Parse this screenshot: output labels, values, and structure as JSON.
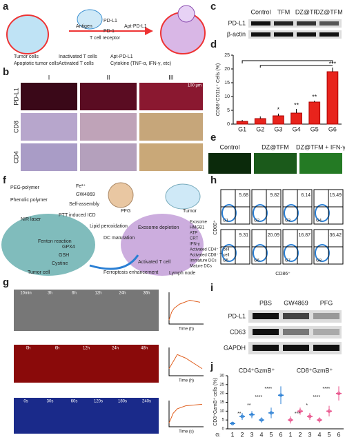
{
  "panels": {
    "a": {
      "letter": "a",
      "labels": [
        "Antigen",
        "PD-L1",
        "PD-1",
        "T cell receptor",
        "Apt-PD-L1"
      ],
      "legend": [
        "Tumor cells",
        "Inactivated T cells",
        "Apt-PD-L1",
        "Apoptotic tumor cells",
        "Activated T cells",
        "Cytokine (TNF-α, IFN-γ, etc)"
      ]
    },
    "b": {
      "letter": "b",
      "columns": [
        "I",
        "II",
        "III"
      ],
      "rows": [
        "PD-L1",
        "CD8",
        "CD4"
      ],
      "scale": "100 μm"
    },
    "c": {
      "letter": "c",
      "columns": [
        "Control",
        "TFM",
        "DZ@TF",
        "DZ@TFM"
      ],
      "rows": [
        "PD-L1",
        "β-actin"
      ]
    },
    "d": {
      "letter": "d",
      "chart": {
        "type": "bar",
        "y_label": "CD86⁺CD11c⁺ Cells (%)",
        "categories": [
          "G1",
          "G2",
          "G3",
          "G4",
          "G5",
          "G6"
        ],
        "values": [
          1,
          2,
          3,
          4,
          8,
          19
        ],
        "errors": [
          0.5,
          0.8,
          0.8,
          1.5,
          0.5,
          1.5
        ],
        "value_labels": [
          null,
          null,
          "*",
          "**",
          "**",
          "***"
        ],
        "color": "#e8231c",
        "ylim": [
          0,
          25
        ],
        "yticks": [
          0,
          5,
          10,
          15,
          20,
          25
        ]
      }
    },
    "e": {
      "letter": "e",
      "columns": [
        "Control",
        "DZ@TFM",
        "DZ@TFM + IFN-γ"
      ]
    },
    "f": {
      "letter": "f",
      "labels": [
        "PEG-polymer",
        "Phenolic polymer",
        "Fe³⁺",
        "GW4869",
        "Self-assembly",
        "PFG",
        "Tumor",
        "NIR laser",
        "PTT induced ICD",
        "Lipid peroxidation",
        "DC maturation",
        "Fenton reaction",
        "GPX4",
        "GSH",
        "Cystine",
        "Exosome depletion",
        "Ferroptosis enhancement",
        "Tumor cell",
        "Lymph node",
        "Activated T cell"
      ],
      "legend": [
        "Exosome",
        "HMGB1",
        "ATP",
        "CRT",
        "IFN-γ",
        "Activated CD4⁺ T cell",
        "Activated CD8⁺ T cell",
        "Immature DCs",
        "Mature DCs"
      ]
    },
    "g": {
      "letter": "g",
      "rows": [
        {
          "times": [
            "10min",
            "3h",
            "6h",
            "12h",
            "24h",
            "36h"
          ],
          "x_label": "Time (h)",
          "x": [
            0,
            3,
            6,
            12,
            24,
            36
          ],
          "values": [
            1,
            3,
            4,
            5,
            6,
            5.5
          ],
          "xlim": [
            0,
            40
          ],
          "ylim": [
            0,
            8
          ]
        },
        {
          "times": [
            "0h",
            "6h",
            "12h",
            "24h",
            "48h"
          ],
          "x_label": "Time (h)",
          "x": [
            0,
            6,
            12,
            24,
            48
          ],
          "values": [
            2,
            4,
            6,
            5,
            2
          ],
          "xlim": [
            0,
            50
          ],
          "ylim": [
            0,
            8
          ]
        },
        {
          "times": [
            "0s",
            "30s",
            "60s",
            "120s",
            "180s",
            "240s"
          ],
          "x_label": "Time (s)",
          "x": [
            0,
            30,
            60,
            120,
            180,
            240
          ],
          "values": [
            25,
            38,
            44,
            48,
            49,
            50
          ],
          "xlim": [
            0,
            250
          ],
          "ylim": [
            20,
            55
          ]
        }
      ]
    },
    "h": {
      "letter": "h",
      "y_label": "CD80⁺",
      "x_label": "CD86⁺",
      "groups": [
        "G1",
        "G2",
        "G3",
        "G4",
        "G5",
        "G6",
        "G7",
        "G8"
      ],
      "percents": [
        "5.68",
        "9.82",
        "6.14",
        "15.49",
        "9.31",
        "20.09",
        "16.87",
        "36.42"
      ]
    },
    "i": {
      "letter": "i",
      "columns": [
        "PBS",
        "GW4869",
        "PFG"
      ],
      "rows": [
        "PD-L1",
        "CD63",
        "GAPDH"
      ]
    },
    "j": {
      "letter": "j",
      "chart": {
        "type": "box",
        "y_label": "CD3⁺GzmB⁺ cells (%)",
        "prefix": "G:",
        "ylim": [
          0,
          30
        ],
        "yticks": [
          0,
          5,
          10,
          15,
          20,
          25,
          30
        ],
        "series": [
          {
            "name": "CD4⁺GzmB⁺",
            "color": "#2a7fd4",
            "categories": [
              "1",
              "2",
              "3",
              "4",
              "5",
              "6"
            ],
            "values": [
              3,
              7,
              8,
              5,
              9,
              19
            ],
            "errors": [
              1,
              2,
              2,
              1.5,
              3,
              5
            ],
            "stars": [
              "**",
              "**",
              "****",
              "****"
            ]
          },
          {
            "name": "CD8⁺GzmB⁺",
            "color": "#e8508a",
            "categories": [
              "1",
              "2",
              "3",
              "4",
              "5",
              "6"
            ],
            "values": [
              5,
              10,
              7,
              5,
              10,
              20
            ],
            "errors": [
              2,
              2,
              2,
              1.5,
              3,
              4
            ],
            "stars": [
              "***",
              "*",
              "****",
              "****"
            ]
          }
        ]
      }
    }
  }
}
